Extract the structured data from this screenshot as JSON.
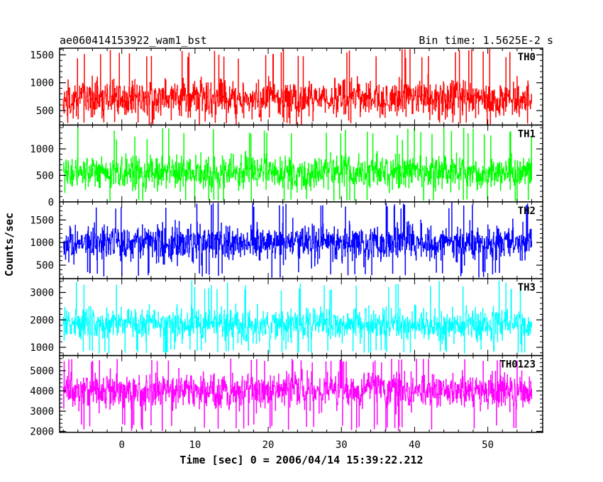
{
  "header": {
    "left_title": "ae060414153922_wam1_bst",
    "right_title": "Bin time: 1.5625E-2 s"
  },
  "chart_data": {
    "type": "line",
    "xlabel": "Time [sec] 0 = 2006/04/14 15:39:22.212",
    "ylabel": "Counts/sec",
    "xlim": [
      -8.5,
      57.5
    ],
    "data_x_range": [
      -8.0,
      56.0
    ],
    "x_ticks": [
      0,
      10,
      20,
      30,
      40,
      50
    ],
    "x_minor_step": 2,
    "grid": false,
    "panels": [
      {
        "name": "TH0",
        "color": "#ff0000",
        "ylim": [
          240,
          1620
        ],
        "y_ticks": [
          500,
          1000,
          1500
        ],
        "y_minor_step": 100,
        "mean": 720,
        "typical_min": 330,
        "typical_max": 1300,
        "spike_max": 1600,
        "dip_min": 250
      },
      {
        "name": "TH1",
        "color": "#00ff00",
        "ylim": [
          0,
          1450
        ],
        "y_ticks": [
          0,
          500,
          1000
        ],
        "y_minor_step": 100,
        "mean": 560,
        "typical_min": 90,
        "typical_max": 1000,
        "spike_max": 1400,
        "dip_min": 20
      },
      {
        "name": "TH2",
        "color": "#0000ff",
        "ylim": [
          200,
          1900
        ],
        "y_ticks": [
          500,
          1000,
          1500
        ],
        "y_minor_step": 100,
        "mean": 1000,
        "typical_min": 450,
        "typical_max": 1650,
        "spike_max": 1880,
        "dip_min": 230
      },
      {
        "name": "TH3",
        "color": "#00ffff",
        "ylim": [
          700,
          3500
        ],
        "y_ticks": [
          1000,
          2000,
          3000
        ],
        "y_minor_step": 200,
        "mean": 1850,
        "typical_min": 1050,
        "typical_max": 2800,
        "spike_max": 3450,
        "dip_min": 780
      },
      {
        "name": "TH0123",
        "color": "#ff00ff",
        "ylim": [
          1950,
          5750
        ],
        "y_ticks": [
          2000,
          3000,
          4000,
          5000
        ],
        "y_minor_step": 200,
        "mean": 4050,
        "typical_min": 2650,
        "typical_max": 5250,
        "spike_max": 5600,
        "dip_min": 2000
      }
    ]
  }
}
